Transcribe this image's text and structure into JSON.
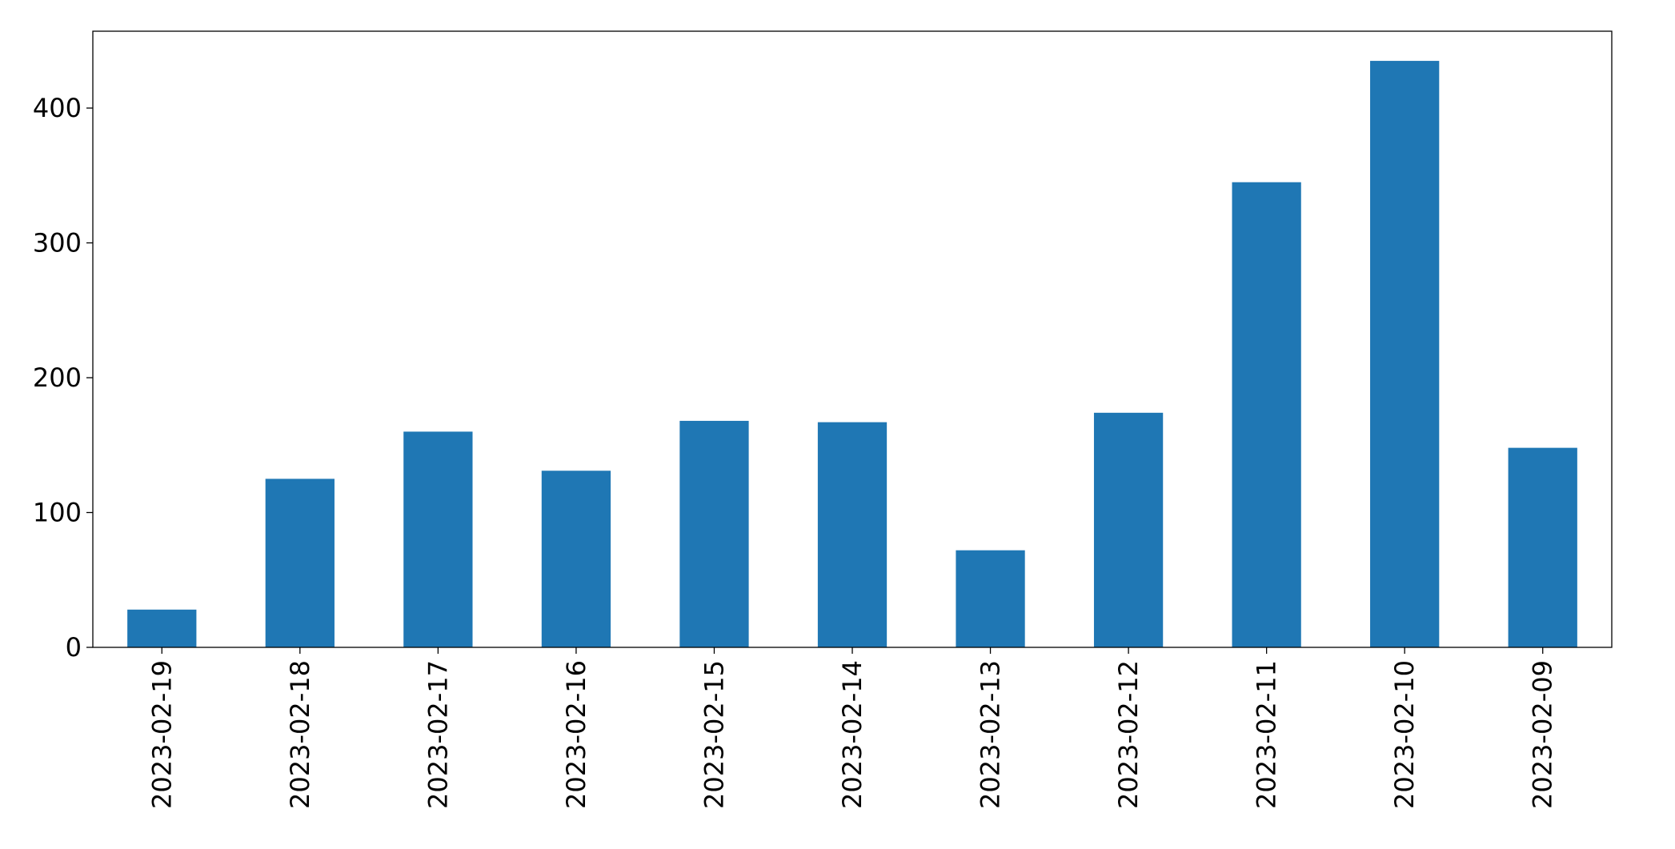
{
  "chart_data": {
    "type": "bar",
    "categories": [
      "2023-02-19",
      "2023-02-18",
      "2023-02-17",
      "2023-02-16",
      "2023-02-15",
      "2023-02-14",
      "2023-02-13",
      "2023-02-12",
      "2023-02-11",
      "2023-02-10",
      "2023-02-09"
    ],
    "values": [
      28,
      125,
      160,
      131,
      168,
      167,
      72,
      174,
      345,
      435,
      148
    ],
    "color": "#1f77b4",
    "ylim": [
      0,
      457
    ],
    "yticks": [
      0,
      100,
      200,
      300,
      400
    ],
    "grid": false
  }
}
